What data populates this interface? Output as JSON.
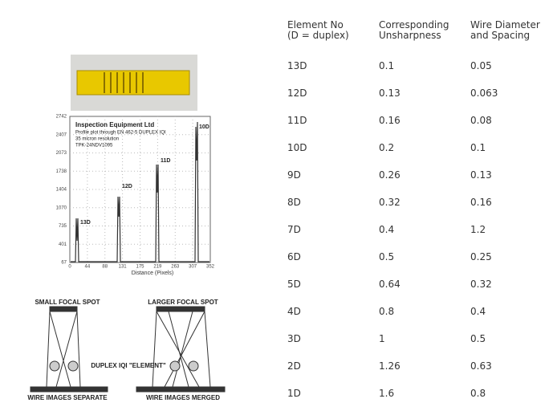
{
  "table": {
    "headers": [
      [
        "Element No",
        "(D = duplex)"
      ],
      [
        "Corresponding",
        "Unsharpness"
      ],
      [
        "Wire Diameter",
        "and Spacing"
      ]
    ],
    "rows": [
      [
        "13D",
        "0.1",
        "0.05"
      ],
      [
        "12D",
        "0.13",
        "0.063"
      ],
      [
        "11D",
        "0.16",
        "0.08"
      ],
      [
        "10D",
        "0.2",
        "0.1"
      ],
      [
        "9D",
        "0.26",
        "0.13"
      ],
      [
        "8D",
        "0.32",
        "0.16"
      ],
      [
        "7D",
        "0.4",
        "1.2"
      ],
      [
        "6D",
        "0.5",
        "0.25"
      ],
      [
        "5D",
        "0.64",
        "0.32"
      ],
      [
        "4D",
        "0.8",
        "0.4"
      ],
      [
        "3D",
        "1",
        "0.5"
      ],
      [
        "2D",
        "1.26",
        "0.63"
      ],
      [
        "1D",
        "1.6",
        "0.8"
      ]
    ]
  },
  "plot": {
    "title": "Inspection Equipment Ltd",
    "lines": [
      "Profile plot through EN 462-5 DUPLEX IQI",
      "35 micron resolution",
      "TPK-24NDV1095"
    ],
    "yticks": [
      "2742",
      "2407",
      "2073",
      "1738",
      "1404",
      "1070",
      "735",
      "401",
      "67"
    ],
    "xticks": [
      "0",
      "44",
      "88",
      "131",
      "175",
      "219",
      "263",
      "307",
      "352"
    ],
    "xlabel": "Distance (Pixels)",
    "peaks": [
      "13D",
      "12D",
      "11D",
      "10D"
    ]
  },
  "diagram": {
    "left_title": "SMALL FOCAL SPOT",
    "right_title": "LARGER FOCAL SPOT",
    "element": "DUPLEX IQI \"ELEMENT\"",
    "left_caption": "WIRE IMAGES SEPARATE",
    "right_caption": "WIRE IMAGES MERGED"
  }
}
